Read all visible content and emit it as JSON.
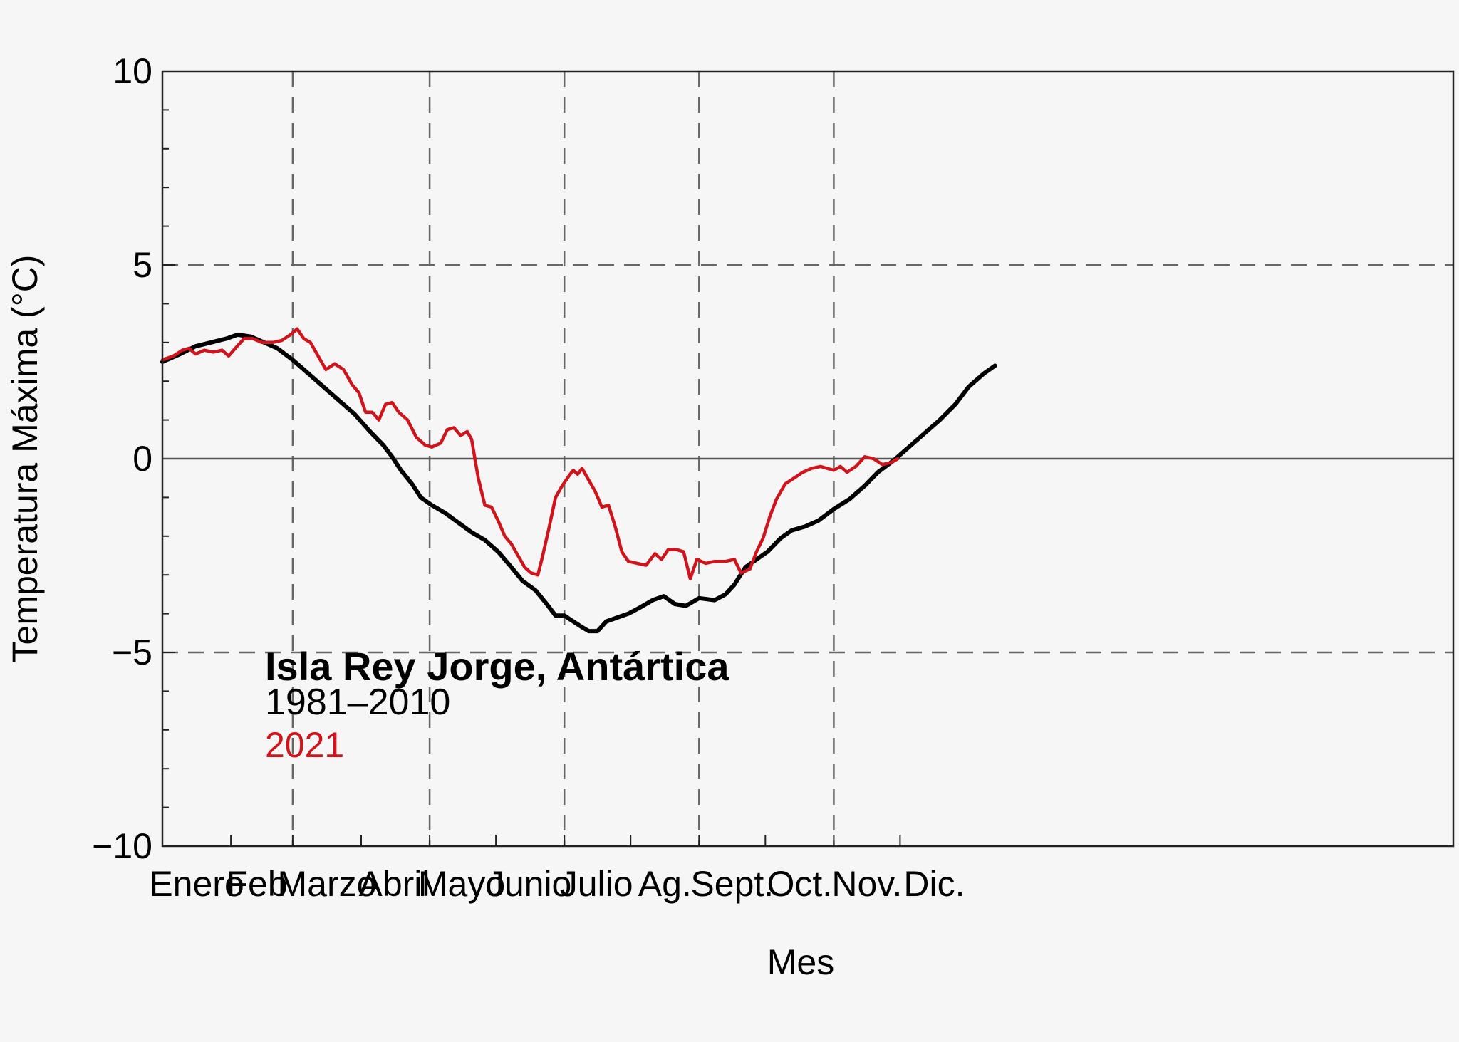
{
  "chart_data": {
    "type": "line",
    "title": "",
    "xlabel": "Mes",
    "ylabel": "Temperatura Máxima   (°C)",
    "xlim": [
      0,
      365
    ],
    "ylim": [
      -10,
      10
    ],
    "grid": true,
    "y_ticks": [
      {
        "value": 10,
        "label": "10"
      },
      {
        "value": 5,
        "label": "5"
      },
      {
        "value": 0,
        "label": "0"
      },
      {
        "value": -5,
        "label": "−5"
      },
      {
        "value": -10,
        "label": "−10"
      }
    ],
    "x_gridlines": [
      59,
      121,
      182,
      243,
      304
    ],
    "x_minor_ticks": [
      31,
      90,
      151,
      212,
      273,
      334
    ],
    "months": [
      {
        "label": "Enero",
        "day": 15.5
      },
      {
        "label": "Feb.",
        "day": 45
      },
      {
        "label": "Marzo",
        "day": 74.5
      },
      {
        "label": "Abril",
        "day": 105
      },
      {
        "label": "Mayo",
        "day": 135.5
      },
      {
        "label": "Junio",
        "day": 166
      },
      {
        "label": "Julio",
        "day": 196.5
      },
      {
        "label": "Ag.",
        "day": 227.5
      },
      {
        "label": "Sept.",
        "day": 258
      },
      {
        "label": "Oct.",
        "day": 288.5
      },
      {
        "label": "Nov.",
        "day": 319
      },
      {
        "label": "Dic.",
        "day": 349.5
      }
    ],
    "annotation": {
      "title": "Isla Rey Jorge, Antártica",
      "baseline_label": "1981–2010",
      "year_label": "2021"
    },
    "series": [
      {
        "name": "1981–2010",
        "color": "#000000",
        "points": [
          [
            0,
            2.5
          ],
          [
            8,
            2.7
          ],
          [
            15,
            2.9
          ],
          [
            22,
            3.0
          ],
          [
            29,
            3.1
          ],
          [
            34,
            3.2
          ],
          [
            40,
            3.15
          ],
          [
            46,
            3.0
          ],
          [
            52,
            2.85
          ],
          [
            59,
            2.55
          ],
          [
            66,
            2.2
          ],
          [
            73,
            1.85
          ],
          [
            80,
            1.5
          ],
          [
            87,
            1.15
          ],
          [
            94,
            0.7
          ],
          [
            100,
            0.35
          ],
          [
            104,
            0.05
          ],
          [
            108,
            -0.3
          ],
          [
            113,
            -0.65
          ],
          [
            117,
            -1.0
          ],
          [
            122,
            -1.2
          ],
          [
            128,
            -1.4
          ],
          [
            134,
            -1.65
          ],
          [
            140,
            -1.9
          ],
          [
            146,
            -2.1
          ],
          [
            152,
            -2.4
          ],
          [
            158,
            -2.8
          ],
          [
            163,
            -3.15
          ],
          [
            169,
            -3.4
          ],
          [
            174,
            -3.75
          ],
          [
            178,
            -4.05
          ],
          [
            182,
            -4.05
          ],
          [
            186,
            -4.2
          ],
          [
            190,
            -4.35
          ],
          [
            193,
            -4.45
          ],
          [
            197,
            -4.45
          ],
          [
            201,
            -4.2
          ],
          [
            206,
            -4.1
          ],
          [
            211,
            -4.0
          ],
          [
            216,
            -3.85
          ],
          [
            222,
            -3.65
          ],
          [
            227,
            -3.55
          ],
          [
            232,
            -3.75
          ],
          [
            237,
            -3.8
          ],
          [
            243,
            -3.6
          ],
          [
            250,
            -3.65
          ],
          [
            255,
            -3.5
          ],
          [
            259,
            -3.25
          ],
          [
            264,
            -2.8
          ],
          [
            269,
            -2.6
          ],
          [
            274,
            -2.4
          ],
          [
            280,
            -2.05
          ],
          [
            285,
            -1.85
          ],
          [
            291,
            -1.75
          ],
          [
            297,
            -1.6
          ],
          [
            304,
            -1.3
          ],
          [
            311,
            -1.05
          ],
          [
            318,
            -0.7
          ],
          [
            324,
            -0.35
          ],
          [
            331,
            -0.05
          ],
          [
            338,
            0.3
          ],
          [
            345,
            0.65
          ],
          [
            352,
            1.0
          ],
          [
            359,
            1.4
          ],
          [
            365,
            1.85
          ],
          [
            372,
            2.2
          ],
          [
            377,
            2.4
          ]
        ]
      },
      {
        "name": "2021",
        "color": "#d0141c",
        "points": [
          [
            0,
            2.55
          ],
          [
            5,
            2.65
          ],
          [
            9,
            2.8
          ],
          [
            12,
            2.85
          ],
          [
            15,
            2.7
          ],
          [
            19,
            2.8
          ],
          [
            23,
            2.75
          ],
          [
            27,
            2.8
          ],
          [
            30,
            2.65
          ],
          [
            33,
            2.85
          ],
          [
            37,
            3.1
          ],
          [
            41,
            3.1
          ],
          [
            45,
            3.0
          ],
          [
            50,
            3.0
          ],
          [
            54,
            3.05
          ],
          [
            58,
            3.2
          ],
          [
            61,
            3.35
          ],
          [
            64,
            3.1
          ],
          [
            67,
            3.0
          ],
          [
            70,
            2.7
          ],
          [
            74,
            2.3
          ],
          [
            78,
            2.45
          ],
          [
            82,
            2.3
          ],
          [
            86,
            1.9
          ],
          [
            89,
            1.7
          ],
          [
            92,
            1.2
          ],
          [
            95,
            1.2
          ],
          [
            98,
            1.0
          ],
          [
            101,
            1.4
          ],
          [
            104,
            1.45
          ],
          [
            107,
            1.2
          ],
          [
            111,
            1.0
          ],
          [
            115,
            0.55
          ],
          [
            119,
            0.35
          ],
          [
            122,
            0.3
          ],
          [
            126,
            0.4
          ],
          [
            129,
            0.75
          ],
          [
            132,
            0.8
          ],
          [
            135,
            0.6
          ],
          [
            138,
            0.7
          ],
          [
            140,
            0.5
          ],
          [
            143,
            -0.5
          ],
          [
            146,
            -1.2
          ],
          [
            149,
            -1.25
          ],
          [
            152,
            -1.6
          ],
          [
            155,
            -2.0
          ],
          [
            158,
            -2.2
          ],
          [
            161,
            -2.5
          ],
          [
            164,
            -2.8
          ],
          [
            167,
            -2.95
          ],
          [
            170,
            -3.0
          ],
          [
            172,
            -2.55
          ],
          [
            175,
            -1.8
          ],
          [
            178,
            -1.0
          ],
          [
            181,
            -0.7
          ],
          [
            184,
            -0.45
          ],
          [
            186,
            -0.3
          ],
          [
            188,
            -0.4
          ],
          [
            190,
            -0.25
          ],
          [
            193,
            -0.55
          ],
          [
            196,
            -0.85
          ],
          [
            199,
            -1.25
          ],
          [
            202,
            -1.2
          ],
          [
            205,
            -1.75
          ],
          [
            208,
            -2.4
          ],
          [
            211,
            -2.65
          ],
          [
            215,
            -2.7
          ],
          [
            219,
            -2.75
          ],
          [
            223,
            -2.45
          ],
          [
            226,
            -2.6
          ],
          [
            229,
            -2.35
          ],
          [
            233,
            -2.35
          ],
          [
            236,
            -2.4
          ],
          [
            239,
            -3.1
          ],
          [
            242,
            -2.6
          ],
          [
            246,
            -2.7
          ],
          [
            250,
            -2.65
          ],
          [
            255,
            -2.65
          ],
          [
            259,
            -2.6
          ],
          [
            262,
            -2.95
          ],
          [
            266,
            -2.85
          ],
          [
            269,
            -2.4
          ],
          [
            272,
            -2.05
          ],
          [
            275,
            -1.5
          ],
          [
            278,
            -1.05
          ],
          [
            282,
            -0.65
          ],
          [
            286,
            -0.5
          ],
          [
            290,
            -0.35
          ],
          [
            294,
            -0.25
          ],
          [
            298,
            -0.2
          ],
          [
            301,
            -0.25
          ],
          [
            304,
            -0.3
          ],
          [
            307,
            -0.2
          ],
          [
            310,
            -0.35
          ],
          [
            314,
            -0.2
          ],
          [
            318,
            0.05
          ],
          [
            322,
            0.0
          ],
          [
            326,
            -0.15
          ],
          [
            330,
            -0.1
          ],
          [
            333,
            0.0
          ]
        ]
      }
    ]
  }
}
